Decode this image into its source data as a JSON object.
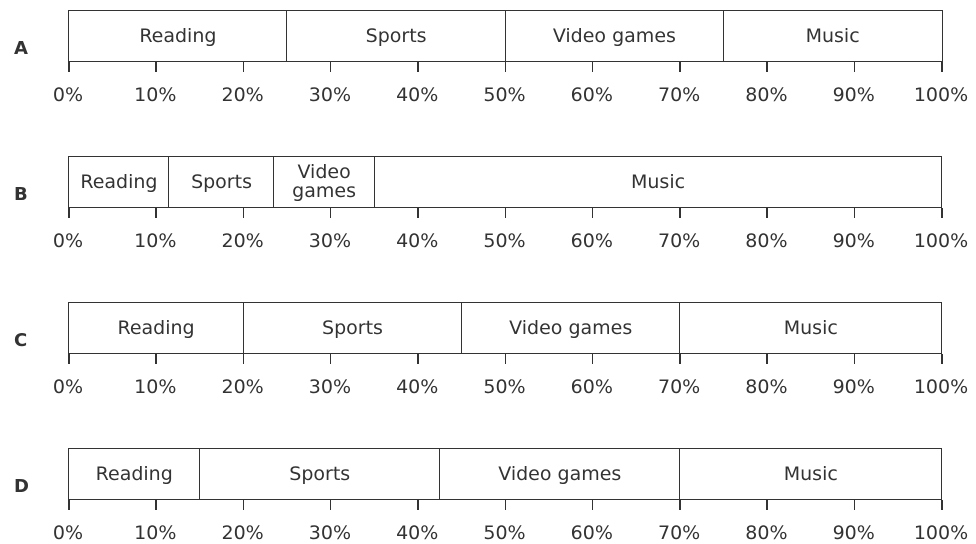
{
  "chart_data": [
    {
      "type": "stacked_bar",
      "title": "A",
      "categories": [
        "Reading",
        "Sports",
        "Video games",
        "Music"
      ],
      "values": [
        25,
        25,
        25,
        25
      ],
      "xlim": [
        0,
        100
      ],
      "xticks": [
        {
          "value": 0,
          "label": "0%"
        },
        {
          "value": 10,
          "label": "10%"
        },
        {
          "value": 20,
          "label": "20%"
        },
        {
          "value": 30,
          "label": "30%"
        },
        {
          "value": 40,
          "label": "40%"
        },
        {
          "value": 50,
          "label": "50%"
        },
        {
          "value": 60,
          "label": "60%"
        },
        {
          "value": 70,
          "label": "70%"
        },
        {
          "value": 80,
          "label": "80%"
        },
        {
          "value": 90,
          "label": "90%"
        },
        {
          "value": 100,
          "label": "100%"
        }
      ]
    },
    {
      "type": "stacked_bar",
      "title": "B",
      "categories": [
        "Reading",
        "Sports",
        "Video games",
        "Music"
      ],
      "values": [
        11.5,
        12,
        11.5,
        65
      ],
      "xlim": [
        0,
        100
      ],
      "xticks": [
        {
          "value": 0,
          "label": "0%"
        },
        {
          "value": 10,
          "label": "10%"
        },
        {
          "value": 20,
          "label": "20%"
        },
        {
          "value": 30,
          "label": "30%"
        },
        {
          "value": 40,
          "label": "40%"
        },
        {
          "value": 50,
          "label": "50%"
        },
        {
          "value": 60,
          "label": "60%"
        },
        {
          "value": 70,
          "label": "70%"
        },
        {
          "value": 80,
          "label": "80%"
        },
        {
          "value": 90,
          "label": "90%"
        },
        {
          "value": 100,
          "label": "100%"
        }
      ]
    },
    {
      "type": "stacked_bar",
      "title": "C",
      "categories": [
        "Reading",
        "Sports",
        "Video games",
        "Music"
      ],
      "values": [
        20,
        25,
        25,
        30
      ],
      "xlim": [
        0,
        100
      ],
      "xticks": [
        {
          "value": 0,
          "label": "0%"
        },
        {
          "value": 10,
          "label": "10%"
        },
        {
          "value": 20,
          "label": "20%"
        },
        {
          "value": 30,
          "label": "30%"
        },
        {
          "value": 40,
          "label": "40%"
        },
        {
          "value": 50,
          "label": "50%"
        },
        {
          "value": 60,
          "label": "60%"
        },
        {
          "value": 70,
          "label": "70%"
        },
        {
          "value": 80,
          "label": "80%"
        },
        {
          "value": 90,
          "label": "90%"
        },
        {
          "value": 100,
          "label": "100%"
        }
      ]
    },
    {
      "type": "stacked_bar",
      "title": "D",
      "categories": [
        "Reading",
        "Sports",
        "Video games",
        "Music"
      ],
      "values": [
        15,
        27.5,
        27.5,
        30
      ],
      "xlim": [
        0,
        100
      ],
      "xticks": [
        {
          "value": 0,
          "label": "0%"
        },
        {
          "value": 10,
          "label": "10%"
        },
        {
          "value": 20,
          "label": "20%"
        },
        {
          "value": 30,
          "label": "30%"
        },
        {
          "value": 40,
          "label": "40%"
        },
        {
          "value": 50,
          "label": "50%"
        },
        {
          "value": 60,
          "label": "60%"
        },
        {
          "value": 70,
          "label": "70%"
        },
        {
          "value": 80,
          "label": "80%"
        },
        {
          "value": 90,
          "label": "90%"
        },
        {
          "value": 100,
          "label": "100%"
        }
      ]
    }
  ]
}
